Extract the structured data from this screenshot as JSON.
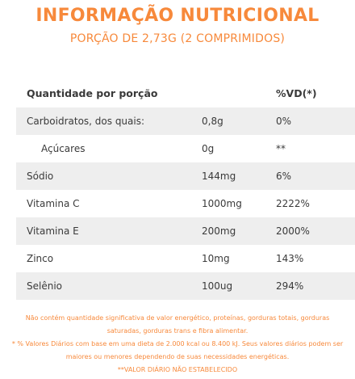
{
  "title": "INFORMAÇÃO NUTRICIONAL",
  "subtitle": "PORÇÃO DE 2,73G (2 COMPRIMIDOS)",
  "header": {
    "label": "Quantidade por porção",
    "vd": "%VD(*)"
  },
  "rows": [
    {
      "name": "Carboidratos, dos quais:",
      "amount": "0,8g",
      "vd": "0%"
    },
    {
      "name": "Açúcares",
      "amount": "0g",
      "vd": "**"
    },
    {
      "name": "Sódio",
      "amount": "144mg",
      "vd": "6%"
    },
    {
      "name": "Vitamina C",
      "amount": "1000mg",
      "vd": "2222%"
    },
    {
      "name": "Vitamina E",
      "amount": "200mg",
      "vd": "2000%"
    },
    {
      "name": "Zinco",
      "amount": "10mg",
      "vd": "143%"
    },
    {
      "name": "Selênio",
      "amount": "100ug",
      "vd": "294%"
    }
  ],
  "footnotes": {
    "line1": "Não contém quantidade significativa de valor energético, proteínas, gorduras totais, gorduras",
    "line2": "saturadas, gorduras trans e fibra alimentar.",
    "line3": "* % Valores Diários com base em uma dieta de 2.000 kcal ou 8.400 kJ. Seus valores diários podem ser",
    "line4": "maiores ou menores dependendo de suas necessidades energéticas.",
    "line5": "**VALOR DIÁRIO NÃO ESTABELECIDO"
  },
  "colors": {
    "accent": "#f7893b",
    "row_shade": "#eeeeee",
    "text": "#3a3a3a"
  }
}
